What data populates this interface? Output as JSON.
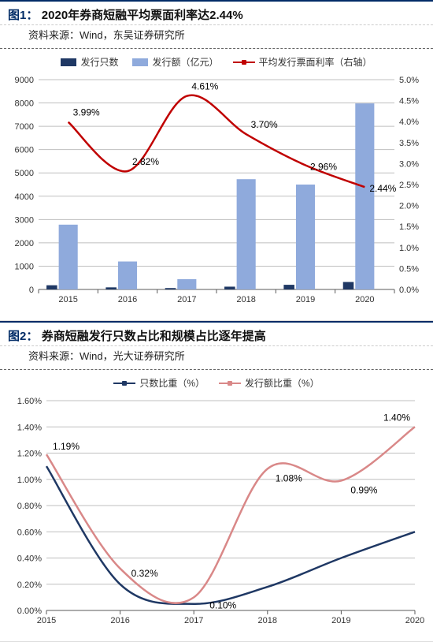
{
  "chart1": {
    "fig_label": "图1：",
    "title": "2020年券商短融平均票面利率达2.44%",
    "source": "资料来源：Wind，东吴证券研究所",
    "type": "bar+line-dual-axis",
    "categories": [
      "2015",
      "2016",
      "2017",
      "2018",
      "2019",
      "2020"
    ],
    "legend": [
      {
        "label": "发行只数",
        "color": "#1f3864",
        "kind": "bar"
      },
      {
        "label": "发行额（亿元）",
        "color": "#8faadc",
        "kind": "bar"
      },
      {
        "label": "平均发行票面利率（右轴）",
        "color": "#c00000",
        "kind": "line"
      }
    ],
    "bars_count": {
      "values": [
        180,
        90,
        60,
        120,
        200,
        320
      ],
      "color": "#1f3864",
      "width": 0.18
    },
    "bars_amount": {
      "values": [
        2780,
        1200,
        440,
        4730,
        4500,
        7980
      ],
      "color": "#8faadc",
      "width": 0.32
    },
    "line_rate": {
      "values": [
        3.99,
        2.82,
        4.61,
        3.7,
        2.96,
        2.44
      ],
      "labels": [
        "3.99%",
        "2.82%",
        "4.61%",
        "3.70%",
        "2.96%",
        "2.44%"
      ],
      "color": "#c00000",
      "width": 2.5
    },
    "y_left": {
      "min": 0,
      "max": 9000,
      "step": 1000
    },
    "y_right": {
      "min": 0,
      "max": 5.0,
      "step": 0.5,
      "format": "0.0%"
    },
    "grid_color": "#bfbfbf",
    "axis_color": "#595959",
    "background": "#ffffff",
    "tick_fontsize": 11,
    "label_fontsize": 12
  },
  "chart2": {
    "fig_label": "图2：",
    "title": "券商短融发行只数占比和规模占比逐年提高",
    "source": "资料来源：Wind，光大证券研究所",
    "type": "line",
    "categories": [
      "2015",
      "2016",
      "2017",
      "2018",
      "2019",
      "2020"
    ],
    "legend": [
      {
        "label": "只数比重（%）",
        "color": "#1f3864",
        "kind": "line"
      },
      {
        "label": "发行额比重（%）",
        "color": "#d98888",
        "kind": "line"
      }
    ],
    "series_count": {
      "values": [
        1.1,
        0.2,
        0.05,
        0.18,
        0.4,
        0.6
      ],
      "color": "#1f3864",
      "width": 2.5
    },
    "series_amount": {
      "values": [
        1.19,
        0.32,
        0.1,
        1.08,
        0.99,
        1.4
      ],
      "labels": [
        "1.19%",
        "0.32%",
        "0.10%",
        "1.08%",
        "0.99%",
        "1.40%"
      ],
      "color": "#d98888",
      "width": 2.5
    },
    "y": {
      "min": 0,
      "max": 1.6,
      "step": 0.2,
      "format": "0.00%"
    },
    "grid_color": "#bfbfbf",
    "axis_color": "#595959",
    "background": "#ffffff",
    "tick_fontsize": 11,
    "label_fontsize": 12
  }
}
